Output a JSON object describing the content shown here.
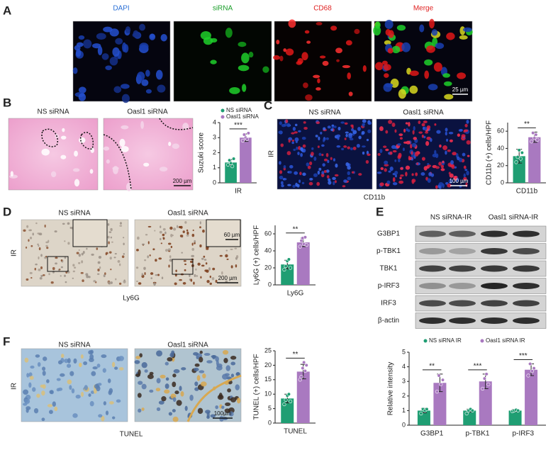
{
  "panels": {
    "A": {
      "label": "A",
      "titles": [
        "DAPI",
        "siRNA",
        "CD68",
        "Merge"
      ],
      "scale": "25 µm"
    },
    "B": {
      "label": "B",
      "titles": [
        "NS siRNA",
        "Oasl1 siRNA"
      ],
      "scale": "200 µm"
    },
    "C": {
      "label": "C",
      "titles": [
        "NS siRNA",
        "Oasl1 siRNA"
      ],
      "side": "IR",
      "stain": "CD11b",
      "scale": "100 µm"
    },
    "D": {
      "label": "D",
      "titles": [
        "NS siRNA",
        "Oasl1 siRNA"
      ],
      "side": "IR",
      "stain": "Ly6G",
      "inset_scale": "60 µm",
      "scale": "200 µm"
    },
    "E": {
      "label": "E",
      "groups": [
        "NS siRNA-IR",
        "Oasl1 siRNA-IR"
      ],
      "rows": [
        "G3BP1",
        "p-TBK1",
        "TBK1",
        "p-IRF3",
        "IRF3",
        "β-actin"
      ]
    },
    "F": {
      "label": "F",
      "titles": [
        "NS siRNA",
        "Oasl1 siRNA"
      ],
      "side": "IR",
      "stain": "TUNEL",
      "scale": "100µm"
    }
  },
  "chart_data": [
    {
      "type": "bar",
      "ylabel": "Suzuki score",
      "categories": [
        "IR"
      ],
      "ylim": [
        0,
        4
      ],
      "yticks": [
        0,
        1,
        2,
        3,
        4
      ],
      "significance": [
        "***"
      ],
      "series": [
        {
          "name": "NS siRNA",
          "color": "#1f9e73",
          "values": [
            1.35
          ],
          "errors": [
            0.2
          ],
          "points": [
            [
              1.2,
              1.5,
              1.3,
              1.1,
              1.6
            ]
          ]
        },
        {
          "name": "Oasl1 siRNA",
          "color": "#a979c0",
          "values": [
            3.0
          ],
          "errors": [
            0.25
          ],
          "points": [
            [
              2.8,
              3.2,
              3.0,
              2.9,
              3.3
            ]
          ]
        }
      ]
    },
    {
      "type": "bar",
      "ylabel": "CD11b (+) cells/HPF",
      "categories": [
        "CD11b"
      ],
      "ylim": [
        0,
        70
      ],
      "yticks": [
        0,
        20,
        40,
        60
      ],
      "significance": [
        "**"
      ],
      "series": [
        {
          "color": "#1f9e73",
          "values": [
            31
          ],
          "errors": [
            8
          ],
          "points": [
            [
              24,
              30,
              38,
              28,
              35
            ]
          ]
        },
        {
          "color": "#a979c0",
          "values": [
            53
          ],
          "errors": [
            6
          ],
          "points": [
            [
              48,
              58,
              52,
              56,
              50
            ]
          ]
        }
      ]
    },
    {
      "type": "bar",
      "ylabel": "Ly6G (+) cells/HPF",
      "categories": [
        "Ly6G"
      ],
      "ylim": [
        0,
        70
      ],
      "yticks": [
        0,
        20,
        40,
        60
      ],
      "significance": [
        "**"
      ],
      "series": [
        {
          "color": "#1f9e73",
          "values": [
            24
          ],
          "errors": [
            5
          ],
          "points": [
            [
              18,
              22,
              28,
              30,
              20
            ]
          ]
        },
        {
          "color": "#a979c0",
          "values": [
            50
          ],
          "errors": [
            5
          ],
          "points": [
            [
              45,
              52,
              55,
              48,
              56,
              47
            ]
          ]
        }
      ]
    },
    {
      "type": "bar",
      "ylabel": "Relative intensity",
      "categories": [
        "G3BP1",
        "p-TBK1",
        "p-IRF3"
      ],
      "ylim": [
        0,
        5
      ],
      "yticks": [
        0,
        1,
        2,
        3,
        4,
        5
      ],
      "significance": [
        "**",
        "***",
        "***"
      ],
      "series": [
        {
          "name": "NS siRNA IR",
          "color": "#1f9e73",
          "values": [
            1.0,
            1.0,
            1.0
          ],
          "errors": [
            0.15,
            0.1,
            0.08
          ],
          "points": [
            [
              0.8,
              1.1,
              1.0,
              1.1
            ],
            [
              0.8,
              1.0,
              1.1,
              1.0
            ],
            [
              0.95,
              1.0,
              1.05,
              1.0
            ]
          ]
        },
        {
          "name": "Oasl1 siRNA IR",
          "color": "#a979c0",
          "values": [
            2.9,
            3.0,
            3.8
          ],
          "errors": [
            0.6,
            0.5,
            0.4
          ],
          "points": [
            [
              2.3,
              3.4,
              2.8,
              3.1
            ],
            [
              2.5,
              3.2,
              3.5,
              2.8
            ],
            [
              3.4,
              4.2,
              3.7,
              3.9
            ]
          ]
        }
      ]
    },
    {
      "type": "bar",
      "ylabel": "TUNEL (+) cells/HPF",
      "categories": [
        "TUNEL"
      ],
      "ylim": [
        0,
        25
      ],
      "yticks": [
        0,
        5,
        10,
        15,
        20,
        25
      ],
      "significance": [
        "**"
      ],
      "series": [
        {
          "color": "#1f9e73",
          "values": [
            8.5
          ],
          "errors": [
            1.5
          ],
          "points": [
            [
              6.5,
              8,
              9.5,
              10,
              7.5
            ]
          ]
        },
        {
          "color": "#a979c0",
          "values": [
            17.8
          ],
          "errors": [
            2.5
          ],
          "points": [
            [
              15,
              16,
              19,
              21,
              18,
              20
            ]
          ]
        }
      ]
    }
  ]
}
